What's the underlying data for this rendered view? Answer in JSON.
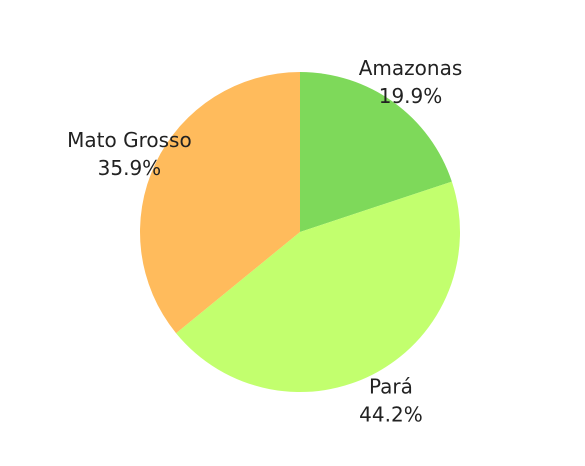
{
  "chart_data": {
    "type": "pie",
    "slices": [
      {
        "label": "Amazonas",
        "value": 19.9,
        "display": "19.9%",
        "color": "#7ed95a"
      },
      {
        "label": "Pará",
        "value": 44.2,
        "display": "44.2%",
        "color": "#c2ff6e"
      },
      {
        "label": "Mato Grosso",
        "value": 35.9,
        "display": "35.9%",
        "color": "#ffbb5c"
      }
    ],
    "start_angle": "12 o'clock",
    "direction": "clockwise",
    "legend": "none"
  }
}
